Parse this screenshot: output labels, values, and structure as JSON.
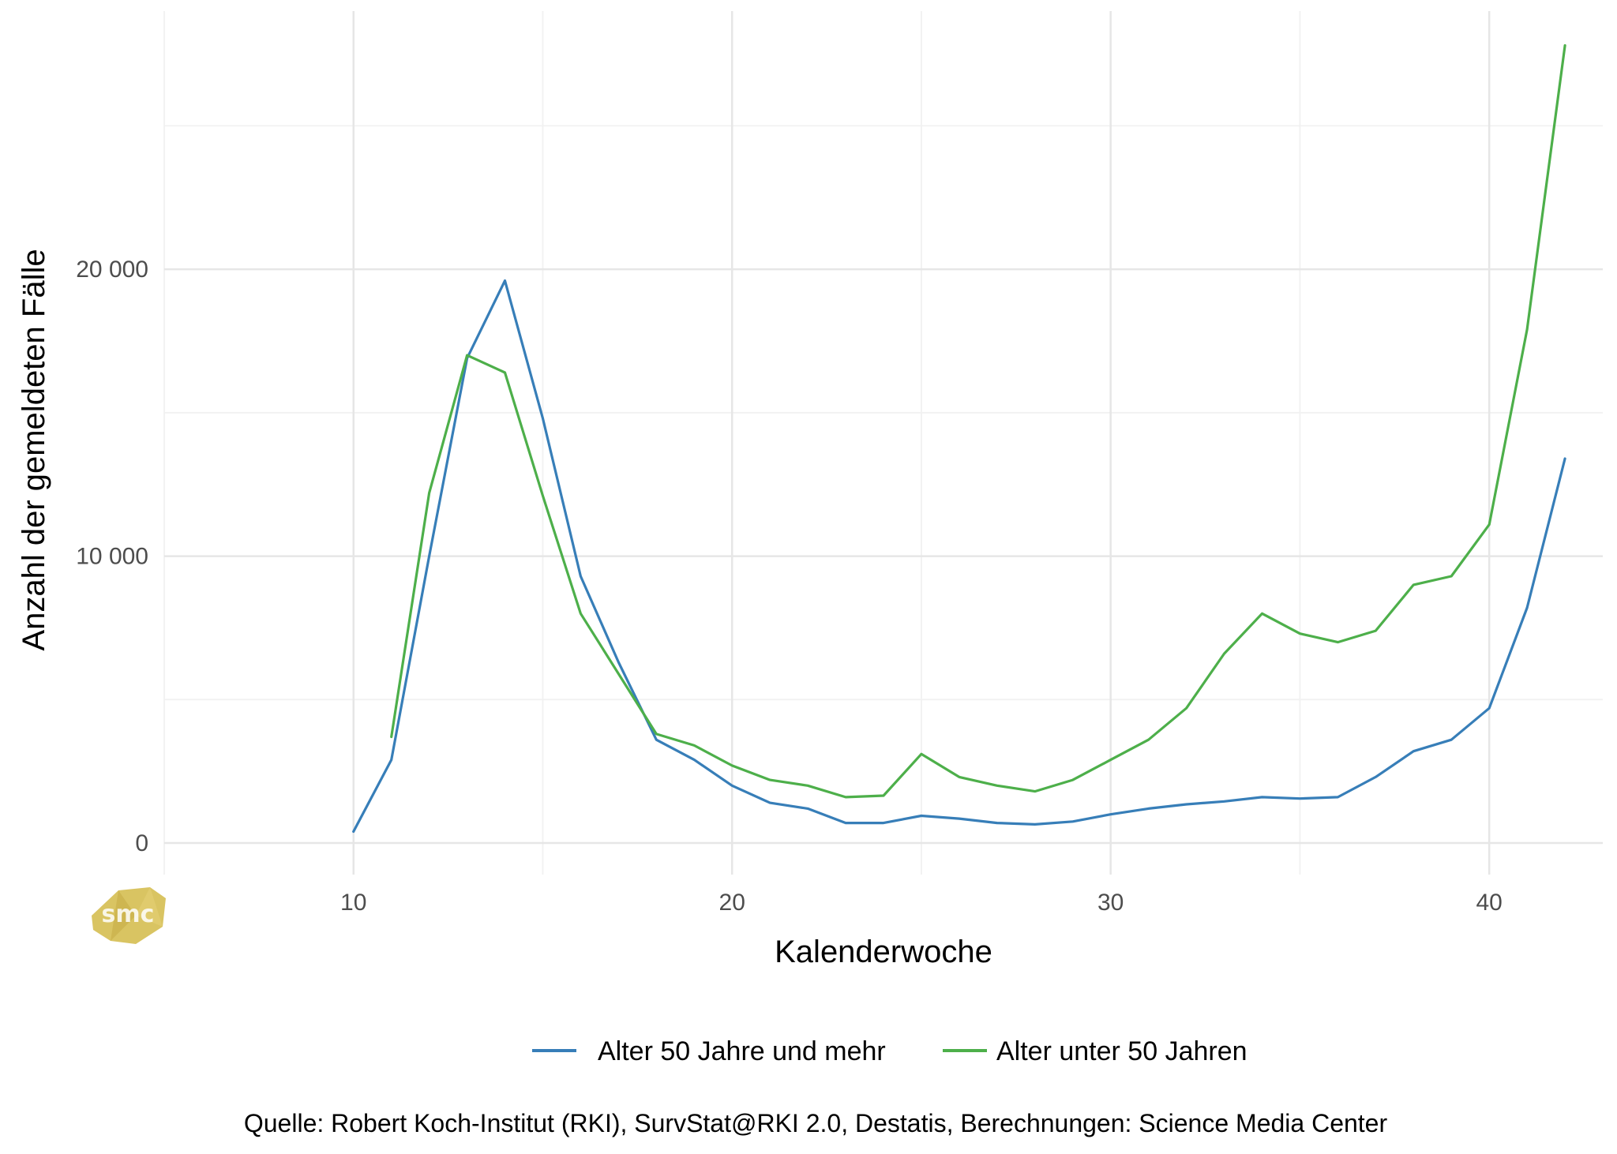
{
  "chart_data": {
    "type": "line",
    "xlabel": "Kalenderwoche",
    "ylabel": "Anzahl der gemeldeten Fälle",
    "xlim": [
      5,
      43
    ],
    "ylim": [
      -1100,
      29000
    ],
    "x_ticks": [
      10,
      20,
      30,
      40
    ],
    "y_ticks": [
      0,
      10000,
      20000
    ],
    "y_tick_labels": [
      "0",
      "10 000",
      "20 000"
    ],
    "grid": true,
    "legend_position": "bottom",
    "caption": "Quelle: Robert Koch-Institut (RKI), SurvStat@RKI 2.0, Destatis, Berechnungen: Science Media Center",
    "logo_text": "smc",
    "series": [
      {
        "name": "Alter 50 Jahre und mehr",
        "color": "#377eb8",
        "x": [
          10,
          11,
          12,
          13,
          14,
          15,
          16,
          17,
          18,
          19,
          20,
          21,
          22,
          23,
          24,
          25,
          26,
          27,
          28,
          29,
          30,
          31,
          32,
          33,
          34,
          35,
          36,
          37,
          38,
          39,
          40,
          41,
          42
        ],
        "values": [
          400,
          2900,
          10000,
          16900,
          19600,
          14800,
          9300,
          6300,
          3600,
          2900,
          2000,
          1400,
          1200,
          700,
          700,
          950,
          850,
          700,
          650,
          750,
          1000,
          1200,
          1350,
          1450,
          1600,
          1550,
          1600,
          2300,
          3200,
          3600,
          4700,
          8200,
          13400
        ]
      },
      {
        "name": "Alter unter 50 Jahren",
        "color": "#4daf4a",
        "x": [
          11,
          12,
          13,
          14,
          15,
          16,
          17,
          18,
          19,
          20,
          21,
          22,
          23,
          24,
          25,
          26,
          27,
          28,
          29,
          30,
          31,
          32,
          33,
          34,
          35,
          36,
          37,
          38,
          39,
          40,
          41,
          42
        ],
        "values": [
          3700,
          12200,
          17000,
          16400,
          12100,
          8000,
          5900,
          3800,
          3400,
          2700,
          2200,
          2000,
          1600,
          1650,
          3100,
          2300,
          2000,
          1800,
          2200,
          2900,
          3600,
          4700,
          6600,
          8000,
          7300,
          7000,
          7400,
          9000,
          9300,
          11100,
          17900,
          27800
        ]
      }
    ]
  }
}
